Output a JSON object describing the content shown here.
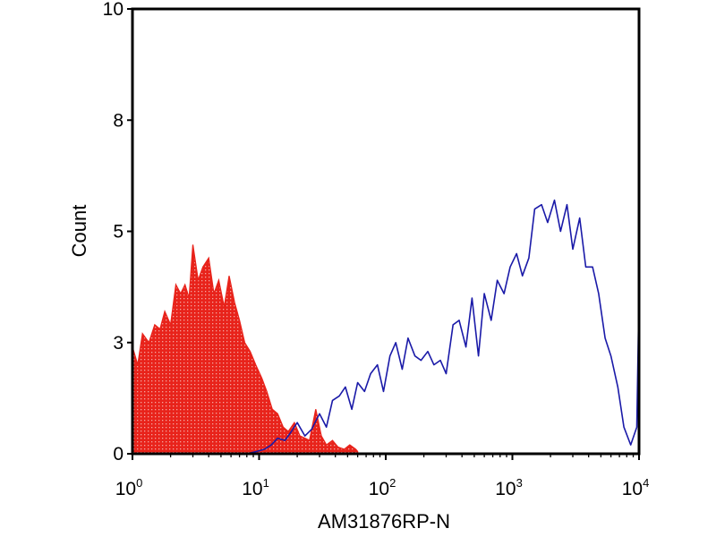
{
  "chart_data": {
    "type": "line",
    "title": "",
    "xlabel": "AM31876RP-N",
    "ylabel": "Count",
    "x_scale": "log",
    "xlim": [
      1,
      10000
    ],
    "ylim": [
      0,
      10
    ],
    "grid": false,
    "x_ticks": [
      {
        "value": 1,
        "base": "10",
        "exp": "0"
      },
      {
        "value": 10,
        "base": "10",
        "exp": "1"
      },
      {
        "value": 100,
        "base": "10",
        "exp": "2"
      },
      {
        "value": 1000,
        "base": "10",
        "exp": "3"
      },
      {
        "value": 10000,
        "base": "10",
        "exp": "4"
      }
    ],
    "y_ticks": [
      {
        "value": 0,
        "label": "0"
      },
      {
        "value": 2.5,
        "label": "3"
      },
      {
        "value": 5,
        "label": "5"
      },
      {
        "value": 7.5,
        "label": "8"
      },
      {
        "value": 10,
        "label": "10"
      }
    ],
    "series": [
      {
        "style": "filled",
        "color": "#e8231b",
        "x": [
          1,
          1.1,
          1.2,
          1.35,
          1.5,
          1.65,
          1.8,
          2.0,
          2.2,
          2.4,
          2.6,
          2.8,
          3.0,
          3.3,
          3.6,
          4.0,
          4.4,
          4.8,
          5.3,
          5.8,
          6.4,
          7.0,
          7.7,
          8.5,
          9.4,
          10.5,
          11.5,
          12.7,
          14,
          15.5,
          17,
          19,
          21,
          23,
          25,
          28,
          31,
          34,
          38,
          42,
          47,
          52,
          58,
          60
        ],
        "y": [
          2.4,
          2.0,
          2.7,
          2.5,
          2.9,
          2.8,
          3.2,
          2.9,
          3.8,
          3.6,
          3.8,
          3.5,
          4.7,
          3.9,
          4.2,
          4.4,
          3.6,
          3.9,
          3.3,
          4.0,
          3.4,
          3.0,
          2.5,
          2.3,
          2.0,
          1.7,
          1.4,
          1.0,
          0.9,
          0.6,
          0.5,
          0.7,
          0.4,
          0.35,
          0.3,
          1.0,
          0.4,
          0.2,
          0.3,
          0.15,
          0.1,
          0.2,
          0.1,
          0.05
        ]
      },
      {
        "style": "line",
        "color": "#1a1aa8",
        "x": [
          8,
          9.5,
          11,
          12.5,
          14,
          16,
          18,
          20,
          23,
          26,
          30,
          34,
          38,
          43,
          48,
          54,
          60,
          68,
          76,
          86,
          96,
          108,
          120,
          135,
          150,
          170,
          190,
          215,
          240,
          270,
          300,
          340,
          380,
          430,
          480,
          540,
          600,
          680,
          760,
          860,
          960,
          1080,
          1200,
          1350,
          1500,
          1700,
          1900,
          2150,
          2400,
          2700,
          3000,
          3400,
          3800,
          4300,
          4800,
          5400,
          6000,
          6800,
          7600,
          8600,
          9600,
          10000
        ],
        "y": [
          0.0,
          0.05,
          0.1,
          0.2,
          0.35,
          0.3,
          0.5,
          0.7,
          0.4,
          0.55,
          0.9,
          0.6,
          1.2,
          1.3,
          1.5,
          1.0,
          1.6,
          1.4,
          1.8,
          2.0,
          1.4,
          2.2,
          2.5,
          1.9,
          2.6,
          2.2,
          2.1,
          2.3,
          2.0,
          2.1,
          1.8,
          2.9,
          3.0,
          2.4,
          3.5,
          2.2,
          3.6,
          3.0,
          3.9,
          3.6,
          4.2,
          4.5,
          4.0,
          4.4,
          5.5,
          5.6,
          5.2,
          5.7,
          5.0,
          5.6,
          4.6,
          5.3,
          4.2,
          4.2,
          3.6,
          2.6,
          2.2,
          1.5,
          0.6,
          0.2,
          0.6,
          3.6
        ]
      }
    ]
  }
}
